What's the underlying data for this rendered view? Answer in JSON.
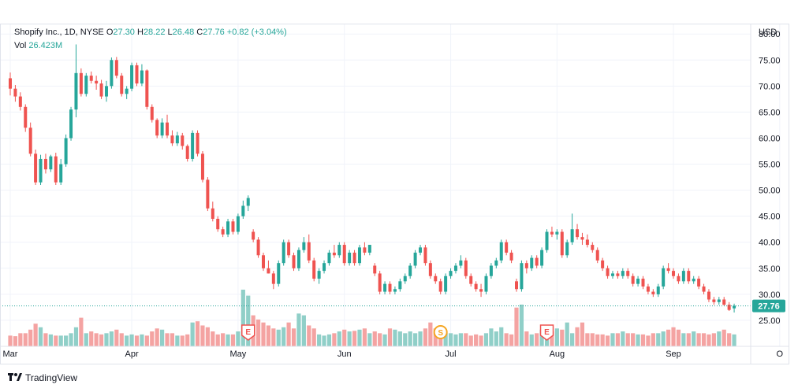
{
  "header": {
    "symbol": "Shopify Inc.",
    "interval": "1D",
    "exchange": "NYSE",
    "o_label": "O",
    "o": "27.30",
    "h_label": "H",
    "h": "28.22",
    "l_label": "L",
    "l": "26.48",
    "c_label": "C",
    "c": "27.76",
    "change": "+0.82 (+3.04%)",
    "vol_label": "Vol",
    "vol": "26.423M",
    "currency": "USD"
  },
  "footer": {
    "brand": "TradingView"
  },
  "colors": {
    "up": "#26a69a",
    "down": "#ef5350",
    "up_vol": "#90cfc8",
    "down_vol": "#f4a3a2",
    "last_price_bg": "#26a69a",
    "earnings": "#ef5350",
    "split": "#f5a623"
  },
  "chart_data": {
    "type": "candlestick",
    "ylim": [
      20,
      82
    ],
    "y_ticks": [
      25,
      30,
      35,
      40,
      45,
      50,
      55,
      60,
      65,
      70,
      75,
      80
    ],
    "y_tick_labels": [
      "25.00",
      "30.00",
      "35.00",
      "40.00",
      "45.00",
      "50.00",
      "55.00",
      "60.00",
      "65.00",
      "70.00",
      "75.00",
      "80.00"
    ],
    "x_labels": [
      {
        "label": "Mar",
        "index": 0
      },
      {
        "label": "Apr",
        "index": 24
      },
      {
        "label": "May",
        "index": 45
      },
      {
        "label": "Jun",
        "index": 66
      },
      {
        "label": "Jul",
        "index": 87
      },
      {
        "label": "Aug",
        "index": 108
      },
      {
        "label": "Sep",
        "index": 131
      },
      {
        "label": "O",
        "index": 152
      }
    ],
    "last_price": 27.76,
    "last_price_label": "27.76",
    "events": [
      {
        "type": "earnings",
        "label": "E",
        "index": 47
      },
      {
        "type": "split",
        "label": "S",
        "index": 85
      },
      {
        "type": "earnings",
        "label": "E",
        "index": 106
      }
    ],
    "ohlc": [
      [
        71.5,
        72.6,
        68.2,
        69.5
      ],
      [
        69.5,
        70.2,
        67.0,
        68.0
      ],
      [
        68.0,
        68.8,
        65.3,
        66.0
      ],
      [
        66.0,
        66.5,
        61.2,
        62.0
      ],
      [
        62.0,
        63.0,
        56.5,
        57.0
      ],
      [
        57.0,
        57.8,
        51.0,
        51.5
      ],
      [
        51.5,
        56.8,
        51.0,
        56.0
      ],
      [
        56.0,
        57.0,
        53.2,
        54.0
      ],
      [
        54.0,
        56.8,
        53.5,
        56.5
      ],
      [
        56.5,
        57.2,
        51.0,
        51.5
      ],
      [
        51.5,
        56.0,
        51.0,
        55.0
      ],
      [
        55.0,
        60.7,
        54.5,
        60.0
      ],
      [
        60.0,
        66.0,
        59.5,
        65.5
      ],
      [
        65.5,
        78.0,
        64.0,
        72.5
      ],
      [
        72.5,
        73.4,
        68.0,
        68.5
      ],
      [
        68.5,
        72.5,
        68.0,
        72.0
      ],
      [
        72.0,
        72.8,
        70.5,
        71.0
      ],
      [
        71.0,
        72.0,
        69.3,
        70.5
      ],
      [
        70.5,
        71.2,
        67.5,
        68.0
      ],
      [
        68.0,
        71.0,
        67.0,
        70.0
      ],
      [
        70.0,
        75.5,
        69.5,
        75.0
      ],
      [
        75.0,
        75.6,
        71.5,
        72.0
      ],
      [
        72.0,
        72.5,
        68.0,
        68.5
      ],
      [
        68.5,
        70.0,
        67.5,
        69.5
      ],
      [
        69.5,
        74.5,
        69.0,
        74.0
      ],
      [
        74.0,
        74.5,
        70.0,
        70.5
      ],
      [
        70.5,
        74.2,
        70.0,
        73.0
      ],
      [
        73.0,
        73.2,
        65.5,
        66.0
      ],
      [
        66.0,
        66.5,
        63.0,
        63.5
      ],
      [
        63.5,
        63.8,
        60.0,
        60.5
      ],
      [
        60.5,
        63.8,
        60.0,
        63.0
      ],
      [
        63.0,
        64.5,
        60.0,
        60.5
      ],
      [
        60.5,
        61.5,
        58.5,
        59.0
      ],
      [
        59.0,
        61.2,
        58.5,
        60.5
      ],
      [
        60.5,
        61.0,
        57.8,
        58.5
      ],
      [
        58.5,
        58.8,
        55.5,
        56.0
      ],
      [
        56.0,
        61.5,
        55.5,
        61.0
      ],
      [
        61.0,
        61.5,
        56.5,
        57.0
      ],
      [
        57.0,
        57.5,
        51.5,
        52.0
      ],
      [
        52.0,
        52.5,
        46.0,
        46.5
      ],
      [
        46.5,
        47.8,
        44.0,
        44.5
      ],
      [
        44.5,
        45.0,
        42.0,
        42.5
      ],
      [
        42.5,
        43.0,
        41.0,
        41.5
      ],
      [
        41.5,
        44.5,
        41.0,
        44.0
      ],
      [
        44.0,
        44.5,
        41.5,
        42.0
      ],
      [
        42.0,
        45.5,
        41.5,
        45.0
      ],
      [
        45.0,
        48.0,
        44.5,
        47.0
      ],
      [
        47.0,
        49.0,
        46.0,
        48.5
      ],
      [
        42.0,
        42.5,
        40.0,
        40.5
      ],
      [
        40.5,
        41.0,
        37.0,
        37.5
      ],
      [
        37.5,
        38.0,
        34.5,
        35.0
      ],
      [
        35.0,
        36.5,
        34.0,
        34.0
      ],
      [
        34.0,
        34.5,
        31.0,
        32.0
      ],
      [
        32.0,
        36.5,
        31.5,
        36.0
      ],
      [
        36.0,
        40.5,
        35.5,
        40.0
      ],
      [
        40.0,
        40.5,
        37.0,
        37.5
      ],
      [
        37.5,
        38.0,
        34.5,
        35.0
      ],
      [
        35.0,
        39.0,
        34.5,
        38.5
      ],
      [
        38.5,
        41.0,
        38.0,
        40.0
      ],
      [
        40.0,
        41.5,
        36.0,
        36.5
      ],
      [
        36.5,
        37.0,
        32.5,
        33.0
      ],
      [
        33.0,
        35.0,
        32.0,
        34.5
      ],
      [
        34.5,
        36.5,
        34.0,
        36.0
      ],
      [
        36.0,
        38.5,
        35.5,
        38.0
      ],
      [
        38.0,
        39.5,
        37.0,
        37.5
      ],
      [
        37.5,
        40.0,
        37.0,
        39.5
      ],
      [
        39.5,
        40.0,
        35.5,
        36.0
      ],
      [
        36.0,
        38.5,
        35.5,
        38.0
      ],
      [
        38.0,
        38.5,
        35.5,
        36.0
      ],
      [
        36.0,
        39.5,
        35.5,
        39.0
      ],
      [
        39.0,
        40.0,
        37.5,
        38.0
      ],
      [
        38.0,
        39.5,
        37.5,
        39.5
      ],
      [
        35.5,
        36.0,
        33.5,
        34.0
      ],
      [
        34.0,
        34.5,
        30.0,
        30.5
      ],
      [
        30.5,
        32.5,
        30.0,
        32.0
      ],
      [
        32.0,
        32.5,
        30.0,
        30.5
      ],
      [
        30.5,
        31.5,
        30.0,
        31.0
      ],
      [
        31.0,
        33.0,
        30.5,
        32.5
      ],
      [
        32.5,
        34.0,
        32.0,
        33.5
      ],
      [
        33.5,
        36.0,
        33.0,
        35.5
      ],
      [
        35.5,
        38.5,
        35.0,
        38.0
      ],
      [
        38.0,
        39.5,
        37.5,
        39.0
      ],
      [
        39.0,
        39.5,
        35.5,
        36.0
      ],
      [
        36.0,
        36.5,
        33.0,
        33.5
      ],
      [
        33.5,
        34.0,
        32.0,
        32.5
      ],
      [
        32.5,
        33.0,
        30.0,
        30.5
      ],
      [
        30.5,
        34.0,
        30.0,
        33.5
      ],
      [
        33.5,
        35.0,
        33.0,
        34.5
      ],
      [
        34.5,
        36.0,
        34.0,
        35.5
      ],
      [
        35.5,
        37.5,
        35.0,
        36.5
      ],
      [
        36.5,
        37.0,
        33.0,
        33.5
      ],
      [
        33.5,
        34.0,
        31.5,
        32.0
      ],
      [
        32.0,
        32.5,
        30.5,
        31.0
      ],
      [
        31.0,
        32.0,
        29.5,
        30.5
      ],
      [
        30.5,
        34.0,
        30.0,
        33.5
      ],
      [
        33.5,
        36.0,
        33.0,
        35.5
      ],
      [
        35.5,
        37.0,
        35.0,
        36.5
      ],
      [
        36.5,
        40.5,
        36.0,
        40.0
      ],
      [
        40.0,
        40.5,
        37.5,
        38.0
      ],
      [
        38.0,
        38.5,
        36.0,
        36.5
      ],
      [
        32.5,
        33.0,
        30.5,
        31.0
      ],
      [
        31.0,
        36.5,
        30.5,
        36.0
      ],
      [
        36.0,
        36.5,
        34.0,
        35.0
      ],
      [
        35.0,
        37.5,
        34.5,
        37.0
      ],
      [
        37.0,
        37.5,
        35.0,
        35.5
      ],
      [
        35.5,
        39.0,
        35.0,
        38.5
      ],
      [
        38.5,
        42.5,
        38.0,
        42.0
      ],
      [
        42.0,
        43.0,
        41.0,
        41.5
      ],
      [
        41.5,
        42.5,
        40.5,
        42.0
      ],
      [
        42.0,
        42.5,
        37.0,
        37.5
      ],
      [
        37.5,
        40.5,
        37.0,
        40.0
      ],
      [
        40.0,
        45.5,
        39.5,
        42.5
      ],
      [
        42.5,
        43.5,
        40.5,
        41.0
      ],
      [
        41.0,
        41.8,
        39.5,
        40.5
      ],
      [
        40.5,
        41.5,
        39.0,
        39.5
      ],
      [
        39.5,
        40.0,
        38.0,
        38.5
      ],
      [
        38.5,
        39.0,
        36.0,
        36.5
      ],
      [
        36.5,
        37.0,
        34.5,
        35.0
      ],
      [
        35.0,
        35.5,
        33.0,
        33.5
      ],
      [
        33.5,
        34.5,
        33.0,
        34.0
      ],
      [
        34.0,
        34.5,
        33.0,
        33.5
      ],
      [
        33.5,
        35.0,
        33.0,
        34.5
      ],
      [
        34.5,
        35.0,
        33.0,
        33.5
      ],
      [
        33.5,
        34.0,
        31.5,
        32.0
      ],
      [
        32.0,
        33.5,
        31.5,
        33.0
      ],
      [
        33.0,
        33.5,
        31.0,
        31.5
      ],
      [
        31.5,
        32.0,
        30.0,
        30.5
      ],
      [
        30.5,
        31.0,
        29.5,
        30.0
      ],
      [
        30.0,
        32.0,
        29.5,
        31.5
      ],
      [
        31.5,
        35.5,
        31.0,
        35.0
      ],
      [
        35.0,
        36.0,
        34.0,
        34.5
      ],
      [
        34.5,
        35.0,
        33.0,
        33.5
      ],
      [
        33.5,
        34.0,
        32.0,
        32.5
      ],
      [
        32.5,
        35.0,
        32.0,
        34.5
      ],
      [
        34.5,
        35.0,
        32.0,
        32.5
      ],
      [
        32.5,
        33.5,
        32.0,
        33.0
      ],
      [
        33.0,
        33.5,
        31.0,
        31.5
      ],
      [
        31.5,
        32.0,
        30.0,
        30.5
      ],
      [
        30.5,
        31.0,
        28.5,
        29.0
      ],
      [
        29.0,
        29.5,
        28.0,
        28.5
      ],
      [
        28.5,
        29.5,
        28.0,
        29.0
      ],
      [
        29.0,
        29.5,
        27.8,
        28.0
      ],
      [
        28.0,
        28.5,
        26.8,
        27.0
      ],
      [
        27.3,
        28.2,
        26.5,
        27.8
      ]
    ],
    "volume": [
      18,
      17,
      22,
      22,
      28,
      38,
      32,
      22,
      20,
      18,
      18,
      18,
      22,
      32,
      48,
      22,
      25,
      22,
      20,
      22,
      25,
      28,
      22,
      18,
      20,
      18,
      20,
      18,
      25,
      30,
      28,
      22,
      22,
      18,
      18,
      20,
      40,
      42,
      35,
      32,
      25,
      20,
      22,
      20,
      20,
      25,
      95,
      85,
      52,
      45,
      40,
      35,
      30,
      28,
      32,
      40,
      30,
      55,
      52,
      35,
      30,
      20,
      18,
      20,
      22,
      25,
      28,
      25,
      26,
      28,
      30,
      22,
      25,
      22,
      20,
      30,
      28,
      25,
      22,
      25,
      22,
      25,
      30,
      40,
      30,
      22,
      22,
      22,
      20,
      22,
      22,
      18,
      20,
      18,
      22,
      30,
      25,
      32,
      22,
      20,
      65,
      70,
      25,
      20,
      22,
      28,
      22,
      25,
      30,
      28,
      40,
      22,
      32,
      40,
      22,
      22,
      20,
      20,
      18,
      22,
      22,
      25,
      22,
      22,
      20,
      20,
      18,
      22,
      22,
      25,
      28,
      32,
      28,
      22,
      22,
      25,
      22,
      22,
      20,
      22,
      25,
      28,
      22,
      20,
      22,
      22,
      22,
      20,
      26
    ]
  }
}
